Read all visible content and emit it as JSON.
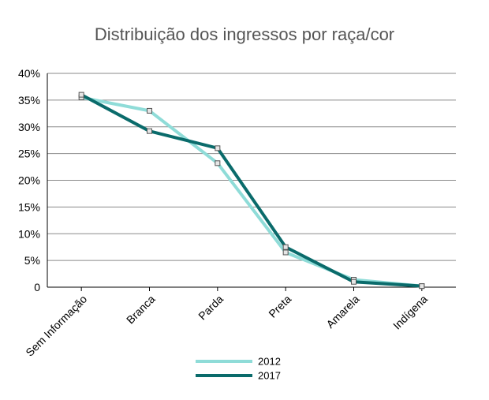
{
  "chart_data": {
    "type": "line",
    "title": "Distribuição dos ingressos por raça/cor",
    "xlabel": "",
    "ylabel": "",
    "categories": [
      "Sem Informação",
      "Branca",
      "Parda",
      "Preta",
      "Amarela",
      "Indígena"
    ],
    "ylim": [
      0,
      40
    ],
    "yticks": [
      "0",
      "5%",
      "10%",
      "15%",
      "20%",
      "25%",
      "30%",
      "35%",
      "40%"
    ],
    "ytick_values": [
      0,
      5,
      10,
      15,
      20,
      25,
      30,
      35,
      40
    ],
    "grid": true,
    "legend_position": "bottom",
    "series": [
      {
        "name": "2012",
        "color": "#8fdcd8",
        "values": [
          35.5,
          33.0,
          23.2,
          6.5,
          1.4,
          0.2
        ]
      },
      {
        "name": "2017",
        "color": "#0a6b6b",
        "values": [
          36.0,
          29.2,
          26.0,
          7.5,
          1.0,
          0.2
        ]
      }
    ]
  }
}
